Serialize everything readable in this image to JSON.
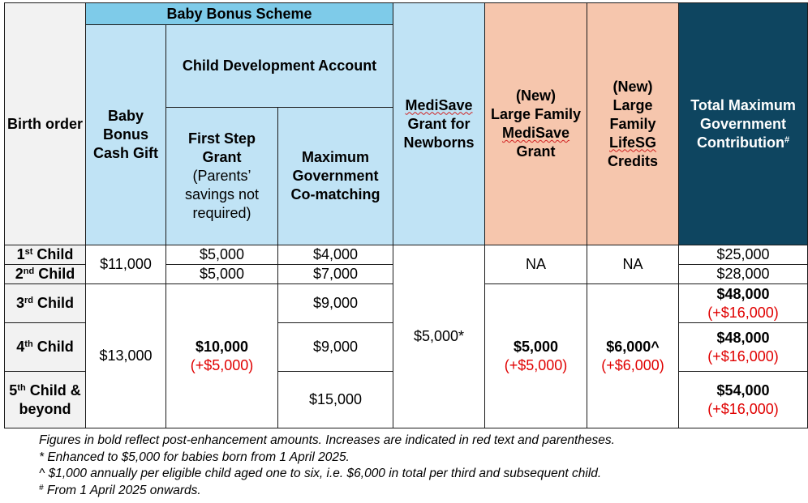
{
  "header": {
    "birth_order": "Birth order",
    "baby_bonus_scheme": "Baby Bonus Scheme",
    "cash_gift": "Baby Bonus Cash Gift",
    "cda": "Child Development Account",
    "first_step_title": "First Step Grant",
    "first_step_note": "(Parents’ savings not required)",
    "max_comatching": "Maximum Government Co-matching",
    "medisave_word": "MediSave",
    "medisave_rest": "Grant for Newborns",
    "lf_medisave_new": "(New)",
    "lf_medisave_mid": "Large Family",
    "lf_medisave_word": "MediSave",
    "lf_medisave_end": "Grant",
    "lf_lifesg_new": "(New)",
    "lf_lifesg_mid": "Large Family",
    "lf_lifesg_word": "LifeSG",
    "lf_lifesg_end": "Credits",
    "total": "Total Maximum Government Contribution",
    "total_mark": "#"
  },
  "rows": [
    {
      "num": "1",
      "sup": "st",
      "label": "Child"
    },
    {
      "num": "2",
      "sup": "nd",
      "label": "Child"
    },
    {
      "num": "3",
      "sup": "rd",
      "label": "Child"
    },
    {
      "num": "4",
      "sup": "th",
      "label": "Child"
    },
    {
      "num": "5",
      "sup": "th",
      "label": "Child & beyond"
    }
  ],
  "cells": {
    "cash_gift_1_2": "$11,000",
    "cash_gift_3plus": "$13,000",
    "first_step_1": "$5,000",
    "first_step_2": "$5,000",
    "first_step_3plus": "$10,000",
    "first_step_3plus_inc": "(+$5,000)",
    "comatch_1": "$4,000",
    "comatch_2": "$7,000",
    "comatch_3": "$9,000",
    "comatch_4": "$9,000",
    "comatch_5": "$15,000",
    "medisave_all": "$5,000*",
    "lf_medisave_1_2": "NA",
    "lf_medisave_3plus": "$5,000",
    "lf_medisave_3plus_inc": "(+$5,000)",
    "lf_lifesg_1_2": "NA",
    "lf_lifesg_3plus": "$6,000^",
    "lf_lifesg_3plus_inc": "(+$6,000)",
    "total_1": "$25,000",
    "total_2": "$28,000",
    "total_3": "$48,000",
    "total_3_inc": "(+$16,000)",
    "total_4": "$48,000",
    "total_4_inc": "(+$16,000)",
    "total_5": "$54,000",
    "total_5_inc": "(+$16,000)"
  },
  "footnotes": [
    {
      "mark": "",
      "text": "Figures in bold reflect post-enhancement amounts. Increases are indicated in red text and parentheses."
    },
    {
      "mark": "",
      "text": "* Enhanced to $5,000 for babies born from 1 April 2025."
    },
    {
      "mark": "",
      "text": "^ $1,000 annually per eligible child aged one to six, i.e. $6,000 in total per third and subsequent child."
    },
    {
      "mark": "#",
      "text": " From 1 April 2025 onwards."
    }
  ],
  "colors": {
    "baby_bonus_header": "#7ecbe9",
    "light_blue": "#c0e3f5",
    "peach": "#f6c6ad",
    "navy": "#0e4560",
    "increase_red": "#e00000"
  }
}
